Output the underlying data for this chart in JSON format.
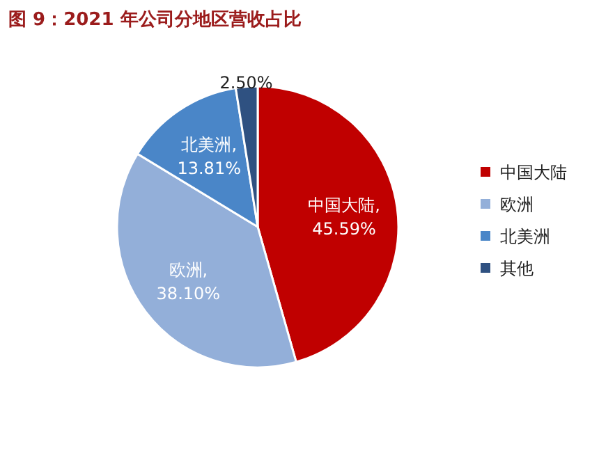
{
  "chart_data": {
    "type": "pie",
    "title": "图 9：2021 年公司分地区营收占比",
    "categories": [
      "中国大陆",
      "欧洲",
      "北美洲",
      "其他"
    ],
    "values": [
      45.59,
      38.1,
      13.81,
      2.5
    ],
    "colors": [
      "#c00000",
      "#93afd9",
      "#4a86c8",
      "#2f5181"
    ],
    "value_labels": [
      "中国大陆,\n45.59%",
      "欧洲,\n38.10%",
      "北美洲,\n13.81%",
      "2.50%"
    ],
    "legend": "right"
  }
}
